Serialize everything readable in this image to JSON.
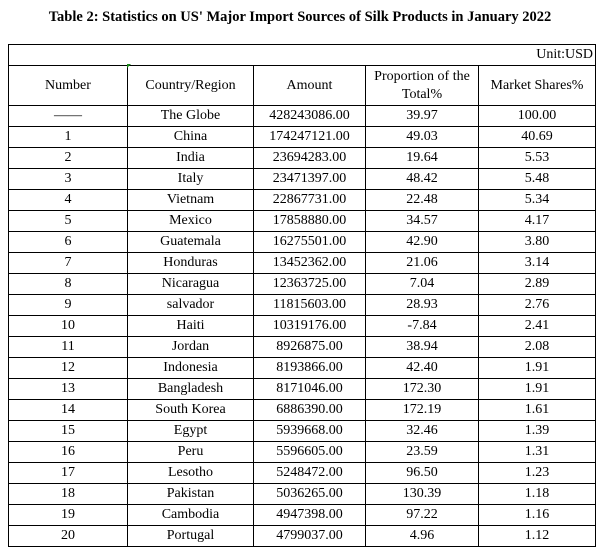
{
  "title": "Table 2: Statistics on US' Major Import Sources of Silk Products in January 2022",
  "unit": "Unit:USD",
  "columns": [
    "Number",
    "Country/Region",
    "Amount",
    "Proportion of the Total%",
    "Market Shares%"
  ],
  "rows": [
    [
      "——",
      "The Globe",
      "428243086.00",
      "39.97",
      "100.00"
    ],
    [
      "1",
      "China",
      "174247121.00",
      "49.03",
      "40.69"
    ],
    [
      "2",
      "India",
      "23694283.00",
      "19.64",
      "5.53"
    ],
    [
      "3",
      "Italy",
      "23471397.00",
      "48.42",
      "5.48"
    ],
    [
      "4",
      "Vietnam",
      "22867731.00",
      "22.48",
      "5.34"
    ],
    [
      "5",
      "Mexico",
      "17858880.00",
      "34.57",
      "4.17"
    ],
    [
      "6",
      "Guatemala",
      "16275501.00",
      "42.90",
      "3.80"
    ],
    [
      "7",
      "Honduras",
      "13452362.00",
      "21.06",
      "3.14"
    ],
    [
      "8",
      "Nicaragua",
      "12363725.00",
      "7.04",
      "2.89"
    ],
    [
      "9",
      "salvador",
      "11815603.00",
      "28.93",
      "2.76"
    ],
    [
      "10",
      "Haiti",
      "10319176.00",
      "-7.84",
      "2.41"
    ],
    [
      "11",
      "Jordan",
      "8926875.00",
      "38.94",
      "2.08"
    ],
    [
      "12",
      "Indonesia",
      "8193866.00",
      "42.40",
      "1.91"
    ],
    [
      "13",
      "Bangladesh",
      "8171046.00",
      "172.30",
      "1.91"
    ],
    [
      "14",
      "South Korea",
      "6886390.00",
      "172.19",
      "1.61"
    ],
    [
      "15",
      "Egypt",
      "5939668.00",
      "32.46",
      "1.39"
    ],
    [
      "16",
      "Peru",
      "5596605.00",
      "23.59",
      "1.31"
    ],
    [
      "17",
      "Lesotho",
      "5248472.00",
      "96.50",
      "1.23"
    ],
    [
      "18",
      "Pakistan",
      "5036265.00",
      "130.39",
      "1.18"
    ],
    [
      "19",
      "Cambodia",
      "4947398.00",
      "97.22",
      "1.16"
    ],
    [
      "20",
      "Portugal",
      "4799037.00",
      "4.96",
      "1.12"
    ]
  ]
}
